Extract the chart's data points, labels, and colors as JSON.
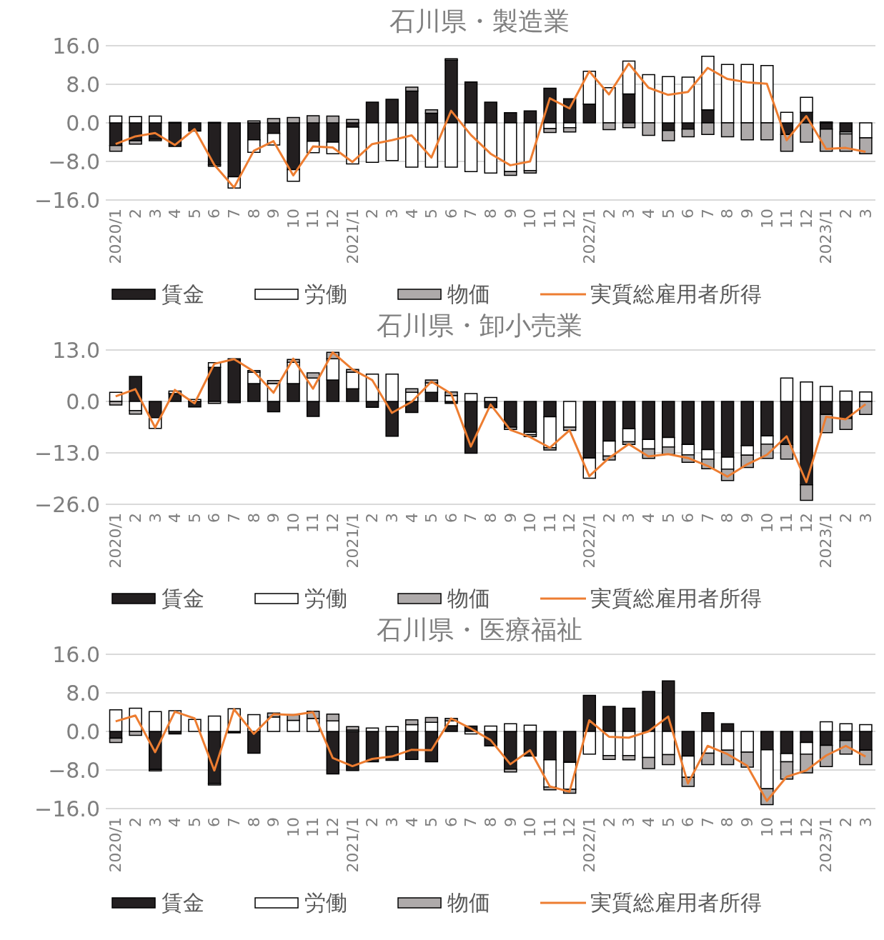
{
  "chart_data": [
    {
      "type": "bar",
      "title": "石川県・製造業",
      "stacked": true,
      "grid": "y",
      "legend": "bottom",
      "marker": "none",
      "line_style": "solid",
      "categories": [
        "2020/1",
        "2",
        "3",
        "4",
        "5",
        "6",
        "7",
        "8",
        "9",
        "10",
        "11",
        "12",
        "2021/1",
        "2",
        "3",
        "4",
        "5",
        "6",
        "7",
        "8",
        "9",
        "10",
        "11",
        "12",
        "2022/1",
        "2",
        "3",
        "4",
        "5",
        "6",
        "7",
        "8",
        "9",
        "10",
        "11",
        "12",
        "2023/1",
        "2",
        "3"
      ],
      "ylim": [
        -16,
        16
      ],
      "yticks": [
        {
          "value": 16,
          "label": "16.0"
        },
        {
          "value": 8,
          "label": "8.0"
        },
        {
          "value": 0,
          "label": "0.0"
        },
        {
          "value": -8,
          "label": "−8.0"
        },
        {
          "value": -16,
          "label": "−16.0"
        }
      ],
      "series": [
        {
          "name": "賃金",
          "type": "bar",
          "color": "#231f20",
          "values": [
            -4.7,
            -3.7,
            -3.4,
            -4.9,
            -1.7,
            -8.7,
            -11.2,
            -3.5,
            -2.2,
            -9.7,
            -3.8,
            -4.0,
            -0.9,
            4.3,
            4.9,
            6.6,
            2.0,
            13.0,
            8.5,
            4.3,
            2.1,
            2.5,
            7.2,
            5.0,
            3.9,
            null,
            6.0,
            null,
            -1.6,
            -1.3,
            2.7,
            null,
            null,
            null,
            -2.4,
            2.2,
            -1.3,
            -1.9,
            null
          ]
        },
        {
          "name": "労働",
          "type": "bar",
          "color": "#ffffff",
          "values": [
            1.4,
            1.3,
            1.4,
            0.1,
            null,
            0.1,
            -2.3,
            -2.6,
            -2.4,
            -2.4,
            -2.4,
            -2.4,
            -7.6,
            -8.2,
            -7.8,
            -9.2,
            -9.2,
            -9.2,
            -10.1,
            -10.4,
            -10.1,
            -9.9,
            -1.2,
            -1.0,
            6.8,
            7.3,
            6.8,
            10.0,
            9.6,
            9.5,
            11.1,
            12.1,
            12.1,
            11.9,
            2.2,
            3.1,
            0.2,
            -0.4,
            -3.1
          ]
        },
        {
          "name": "物価",
          "type": "bar",
          "color": "#aeaaaa",
          "values": [
            -1.2,
            -0.7,
            -0.3,
            null,
            null,
            -0.3,
            null,
            0.4,
            0.9,
            1.1,
            1.5,
            1.4,
            0.7,
            null,
            null,
            0.8,
            0.7,
            0.3,
            null,
            null,
            -0.8,
            -0.5,
            -0.8,
            -0.9,
            null,
            -1.4,
            -1.0,
            -2.6,
            -2.1,
            -1.6,
            -2.4,
            -2.9,
            -3.5,
            -3.5,
            -3.5,
            -4.0,
            -4.6,
            -3.6,
            -3.3
          ]
        },
        {
          "name": "実質総雇用者所得",
          "type": "line",
          "color": "#ed7d31",
          "values": [
            -4.4,
            -2.8,
            -2.1,
            -4.6,
            -1.3,
            -8.7,
            -13.4,
            -5.8,
            -3.8,
            -10.9,
            -4.9,
            -5.1,
            -8.1,
            -4.4,
            -3.6,
            -2.6,
            -7.2,
            2.5,
            -2.5,
            -6.4,
            -8.8,
            -8.0,
            5.1,
            3.0,
            10.7,
            5.9,
            12.3,
            7.3,
            5.8,
            6.4,
            11.4,
            9.1,
            8.4,
            8.1,
            -3.6,
            1.4,
            -5.4,
            -5.2,
            -6.0
          ]
        }
      ]
    },
    {
      "type": "bar",
      "title": "石川県・卸小売業",
      "stacked": true,
      "grid": "y",
      "legend": "bottom",
      "marker": "none",
      "line_style": "solid",
      "categories": [
        "2020/1",
        "2",
        "3",
        "4",
        "5",
        "6",
        "7",
        "8",
        "9",
        "10",
        "11",
        "12",
        "2021/1",
        "2",
        "3",
        "4",
        "5",
        "6",
        "7",
        "8",
        "9",
        "10",
        "11",
        "12",
        "2022/1",
        "2",
        "3",
        "4",
        "5",
        "6",
        "7",
        "8",
        "9",
        "10",
        "11",
        "12",
        "2023/1",
        "2",
        "3"
      ],
      "ylim": [
        -26,
        13
      ],
      "yticks": [
        {
          "value": 13,
          "label": "13.0"
        },
        {
          "value": 0,
          "label": "0.0"
        },
        {
          "value": -13,
          "label": "−13.0"
        },
        {
          "value": -26,
          "label": "−26.0"
        }
      ],
      "series": [
        {
          "name": "賃金",
          "type": "bar",
          "color": "#231f20",
          "values": [
            null,
            6.3,
            -4.1,
            2.0,
            -1.4,
            8.6,
            10.8,
            4.5,
            -2.6,
            4.5,
            -3.8,
            5.4,
            3.2,
            -1.5,
            -8.8,
            -2.8,
            2.3,
            -0.5,
            -13.1,
            -1.6,
            -6.5,
            -7.8,
            -3.9,
            null,
            -14.3,
            -10.0,
            -6.9,
            -9.6,
            -9.1,
            -10.9,
            -12.2,
            -14.1,
            -11.2,
            -8.7,
            -10.9,
            -21.1,
            -3.3,
            -4.3,
            null
          ]
        },
        {
          "name": "労働",
          "type": "bar",
          "color": "#ffffff",
          "values": [
            2.3,
            -2.3,
            -2.7,
            0.6,
            0.5,
            1.2,
            null,
            2.9,
            4.5,
            5.4,
            5.9,
            5.4,
            4.2,
            6.9,
            6.9,
            2.3,
            2.4,
            1.5,
            2.0,
            1.0,
            null,
            -0.6,
            -7.8,
            -6.5,
            -5.1,
            -3.8,
            -3.3,
            -2.4,
            -2.4,
            -2.6,
            -2.4,
            -3.0,
            -2.4,
            -2.1,
            5.9,
            4.9,
            3.8,
            2.6,
            2.4
          ]
        },
        {
          "name": "物価",
          "type": "bar",
          "color": "#aeaaaa",
          "values": [
            -0.9,
            -0.9,
            null,
            null,
            null,
            -0.5,
            -0.3,
            0.4,
            0.8,
            0.7,
            1.3,
            1.6,
            0.7,
            null,
            null,
            0.9,
            0.7,
            0.9,
            null,
            null,
            -0.6,
            -0.5,
            -0.6,
            -0.8,
            null,
            -1.0,
            -0.7,
            -2.4,
            -1.9,
            -1.9,
            -2.4,
            -2.9,
            -3.1,
            -3.6,
            -3.7,
            -3.9,
            -4.6,
            -2.8,
            -3.3
          ]
        },
        {
          "name": "実質総雇用者所得",
          "type": "line",
          "color": "#ed7d31",
          "values": [
            1.3,
            3.1,
            -6.6,
            2.9,
            -0.5,
            9.5,
            10.7,
            7.6,
            2.2,
            10.8,
            3.2,
            12.4,
            8.1,
            5.4,
            -2.9,
            -0.1,
            5.0,
            2.0,
            -11.4,
            -0.8,
            -7.2,
            -9.0,
            -11.7,
            -7.3,
            -18.9,
            -14.3,
            -10.8,
            -13.9,
            -13.3,
            -14.3,
            -16.3,
            -19.0,
            -15.9,
            -13.5,
            -8.8,
            -20.4,
            -3.9,
            -4.5,
            -0.7
          ]
        }
      ]
    },
    {
      "type": "bar",
      "title": "石川県・医療福祉",
      "stacked": true,
      "grid": "y",
      "legend": "bottom",
      "marker": "none",
      "line_style": "solid",
      "categories": [
        "2020/1",
        "2",
        "3",
        "4",
        "5",
        "6",
        "7",
        "8",
        "9",
        "10",
        "11",
        "12",
        "2021/1",
        "2",
        "3",
        "4",
        "5",
        "6",
        "7",
        "8",
        "9",
        "10",
        "11",
        "12",
        "2022/1",
        "2",
        "3",
        "4",
        "5",
        "6",
        "7",
        "8",
        "9",
        "10",
        "11",
        "12",
        "2023/1",
        "2",
        "3"
      ],
      "ylim": [
        -16,
        16
      ],
      "yticks": [
        {
          "value": 16,
          "label": "16.0"
        },
        {
          "value": 8,
          "label": "8.0"
        },
        {
          "value": 0,
          "label": "0.0"
        },
        {
          "value": -8,
          "label": "−8.0"
        },
        {
          "value": -16,
          "label": "−16.0"
        }
      ],
      "series": [
        {
          "name": "賃金",
          "type": "bar",
          "color": "#231f20",
          "values": [
            -1.4,
            null,
            -7.9,
            -0.5,
            null,
            -10.8,
            -0.3,
            -4.5,
            null,
            null,
            null,
            -8.8,
            -8.1,
            -6.3,
            -6.0,
            -5.8,
            -6.3,
            1.2,
            1.1,
            -3.0,
            -7.8,
            -5.1,
            -5.9,
            -6.4,
            7.5,
            5.2,
            4.8,
            8.3,
            10.5,
            -5.1,
            3.9,
            1.6,
            null,
            -3.8,
            -4.6,
            -2.3,
            -2.9,
            -1.9,
            -3.9
          ]
        },
        {
          "name": "労働",
          "type": "bar",
          "color": "#ffffff",
          "values": [
            4.5,
            4.8,
            4.1,
            4.3,
            2.5,
            3.2,
            4.7,
            3.5,
            3.0,
            2.3,
            2.7,
            2.2,
            0.3,
            0.7,
            1.0,
            1.4,
            1.9,
            1.0,
            -0.5,
            1.1,
            1.6,
            1.3,
            -5.6,
            -5.6,
            -4.7,
            -5.0,
            -5.0,
            -5.4,
            -4.8,
            -4.4,
            -4.5,
            -3.9,
            -4.3,
            -8.1,
            -1.7,
            -2.4,
            2.0,
            1.6,
            1.4
          ]
        },
        {
          "name": "物価",
          "type": "bar",
          "color": "#aeaaaa",
          "values": [
            -0.9,
            -0.8,
            -0.3,
            null,
            null,
            -0.3,
            null,
            null,
            0.8,
            1.2,
            1.5,
            1.4,
            0.7,
            null,
            null,
            1.0,
            1.0,
            0.5,
            null,
            null,
            -0.6,
            null,
            -0.6,
            -0.8,
            null,
            -0.8,
            -0.9,
            -2.3,
            -2.1,
            -1.9,
            -2.4,
            -3.0,
            -3.1,
            -3.3,
            -3.6,
            -3.9,
            -4.4,
            -2.8,
            -3.0
          ]
        },
        {
          "name": "実質総雇用者所得",
          "type": "line",
          "color": "#ed7d31",
          "values": [
            2.1,
            3.3,
            -4.3,
            4.1,
            2.7,
            -8.1,
            4.6,
            -0.5,
            3.6,
            3.4,
            4.0,
            -5.5,
            -7.2,
            -5.7,
            -5.2,
            -3.8,
            -3.9,
            2.7,
            0.6,
            -1.8,
            -6.8,
            -3.9,
            -11.4,
            -12.5,
            2.3,
            -1.1,
            -1.3,
            0.0,
            3.1,
            -10.8,
            -3.0,
            -4.7,
            -7.1,
            -14.4,
            -9.4,
            -8.1,
            -5.0,
            -3.0,
            -5.2
          ]
        }
      ]
    }
  ]
}
